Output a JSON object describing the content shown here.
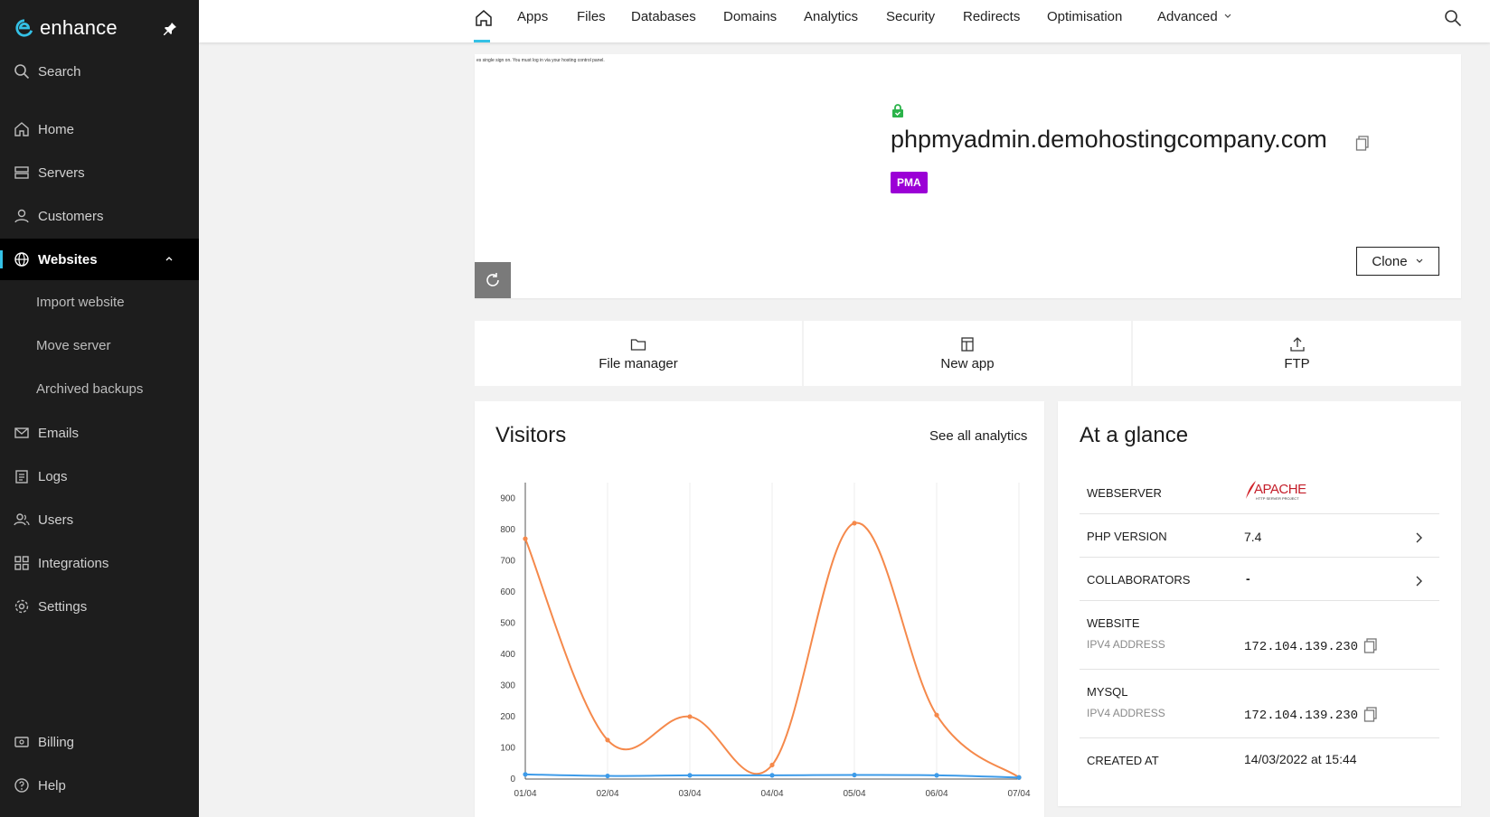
{
  "sidebar": {
    "brand": "enhance",
    "search_label": "Search",
    "items": [
      {
        "label": "Home",
        "icon": "home-icon"
      },
      {
        "label": "Servers",
        "icon": "servers-icon"
      },
      {
        "label": "Customers",
        "icon": "customers-icon"
      },
      {
        "label": "Websites",
        "icon": "globe-icon"
      },
      {
        "label": "Emails",
        "icon": "mail-icon"
      },
      {
        "label": "Logs",
        "icon": "logs-icon"
      },
      {
        "label": "Users",
        "icon": "users-icon"
      },
      {
        "label": "Integrations",
        "icon": "integrations-icon"
      },
      {
        "label": "Settings",
        "icon": "gear-icon"
      },
      {
        "label": "Billing",
        "icon": "billing-icon"
      },
      {
        "label": "Help",
        "icon": "help-icon"
      }
    ],
    "sub_items": [
      "Import website",
      "Move server",
      "Archived backups"
    ],
    "accent": "#34c1e6"
  },
  "tabs": [
    "Apps",
    "Files",
    "Databases",
    "Domains",
    "Analytics",
    "Security",
    "Redirects",
    "Optimisation",
    "Advanced"
  ],
  "preview_text": "es single sign on. You must log in via your hosting control panel.",
  "site": {
    "domain": "phpmyadmin.demohostingcompany.com",
    "badge": "PMA",
    "badge_color": "#9b00d6",
    "clone_label": "Clone"
  },
  "quick_actions": [
    {
      "label": "File manager",
      "icon": "folder-icon"
    },
    {
      "label": "New app",
      "icon": "app-icon"
    },
    {
      "label": "FTP",
      "icon": "upload-icon"
    }
  ],
  "visitors": {
    "title": "Visitors",
    "link": "See all analytics"
  },
  "chart_data": {
    "type": "line",
    "title": "",
    "xlabel": "",
    "ylabel": "",
    "categories": [
      "01/04",
      "02/04",
      "03/04",
      "04/04",
      "05/04",
      "06/04",
      "07/04"
    ],
    "yticks": [
      "0",
      "100",
      "200",
      "300",
      "400",
      "500",
      "600",
      "700",
      "800",
      "900"
    ],
    "ylim": [
      0,
      950
    ],
    "grid": true,
    "series": [
      {
        "color": "#f5894b",
        "values": [
          770,
          125,
          200,
          45,
          820,
          205,
          5
        ]
      },
      {
        "color": "#3d9be9",
        "values": [
          15,
          10,
          12,
          12,
          13,
          12,
          5
        ]
      }
    ]
  },
  "glance": {
    "title": "At a glance",
    "webserver_label": "WEBSERVER",
    "webserver_value": "APACHE",
    "webserver_sub": "HTTP SERVER PROJECT",
    "php_label": "PHP VERSION",
    "php_value": "7.4",
    "collab_label": "COLLABORATORS",
    "collab_value": "-",
    "website_label": "WEBSITE",
    "website_sub": "IPV4 ADDRESS",
    "website_ip": "172.104.139.230",
    "mysql_label": "MYSQL",
    "mysql_sub": "IPV4 ADDRESS",
    "mysql_ip": "172.104.139.230",
    "created_label": "CREATED AT",
    "created_value": "14/03/2022 at 15:44"
  }
}
